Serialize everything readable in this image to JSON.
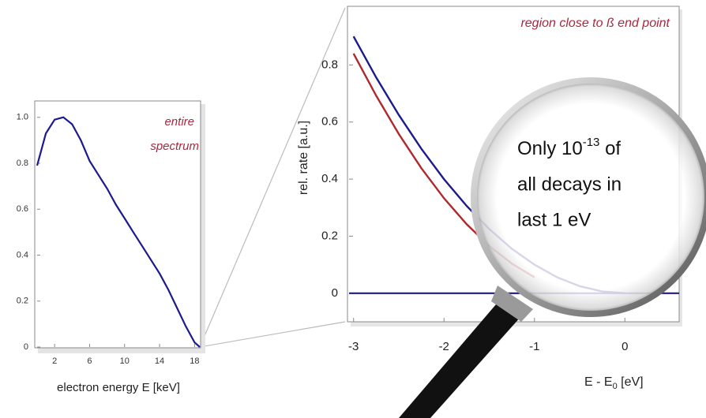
{
  "chart_data": [
    {
      "type": "line",
      "annotation": [
        "entire",
        "spectrum"
      ],
      "xlabel": "electron energy E [keV]",
      "x": [
        0,
        1,
        2,
        3,
        4,
        5,
        6,
        7,
        8,
        9,
        10,
        11,
        12,
        13,
        14,
        15,
        16,
        17,
        18,
        18.6
      ],
      "series": [
        {
          "color": "#1c1a8c",
          "values": [
            0.79,
            0.93,
            0.99,
            1.0,
            0.97,
            0.9,
            0.81,
            0.75,
            0.69,
            0.62,
            0.56,
            0.5,
            0.44,
            0.38,
            0.32,
            0.25,
            0.17,
            0.09,
            0.02,
            0
          ]
        }
      ],
      "xlim": [
        0,
        18.6
      ],
      "xticks": [
        2,
        6,
        10,
        14,
        18
      ],
      "ylim": [
        0,
        1.03
      ],
      "yticks": [
        0,
        0.2,
        0.4,
        0.6,
        0.8,
        {
          "value": 1,
          "label": "1.0"
        }
      ]
    },
    {
      "type": "line",
      "title": "region close to ß end point",
      "ylabel": "rel. rate [a.u.]",
      "xlabel": {
        "main": "E - E",
        "sub": "0",
        "rest": " [eV]"
      },
      "x": [
        -3,
        -2.75,
        -2.5,
        -2.25,
        -2,
        -1.75,
        -1.5,
        -1.25,
        -1,
        -0.75,
        -0.5,
        -0.25,
        0
      ],
      "series": [
        {
          "color": "#b0282c",
          "values": [
            0.84,
            0.692,
            0.558,
            0.438,
            0.333,
            0.242,
            0.166,
            0.104,
            0.056,
            null,
            null,
            null,
            null
          ]
        },
        {
          "color": "#1c1a8c",
          "values": [
            0.9,
            0.756,
            0.625,
            0.506,
            0.4,
            0.306,
            0.225,
            0.156,
            0.1,
            0.056,
            0.025,
            0.006,
            0
          ]
        }
      ],
      "zero_line_color": "#1c1a8c",
      "xlim": [
        -3.05,
        0.6
      ],
      "xticks": [
        -3,
        -2,
        -1,
        0
      ],
      "ylim": [
        -0.1,
        1.0
      ],
      "yticks": [
        0,
        0.2,
        0.4,
        0.6,
        0.8
      ],
      "annotation": {
        "line1": [
          "Only 10",
          "-13",
          " of"
        ],
        "line2": "all decays in",
        "line3": "last 1 eV"
      }
    }
  ]
}
